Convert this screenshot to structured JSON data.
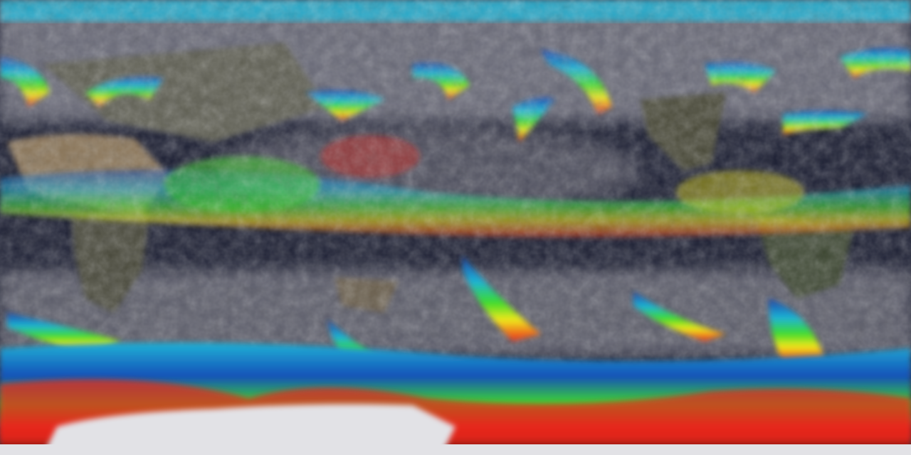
{
  "map": {
    "projection": "equirectangular",
    "view": "global",
    "colors": {
      "ocean": "#1c1f33",
      "cloud": "#8a8a96",
      "land_desert": "#8a7558",
      "land_forest": "#3e4632",
      "ice": "#e2e2e6",
      "scale_low": "#1a3fa8",
      "scale_mid_low": "#1fb3d6",
      "scale_mid": "#3ddc2a",
      "scale_mid_high": "#f2e81c",
      "scale_high": "#e8261a"
    }
  }
}
